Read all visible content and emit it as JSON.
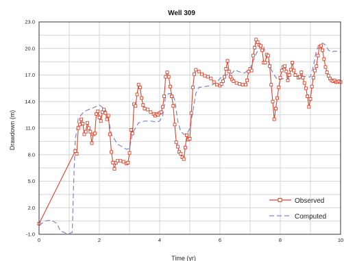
{
  "chart_data": {
    "type": "line",
    "title": "Well 309",
    "xlabel": "Time (yr)",
    "ylabel": "Drawdown (m)",
    "xlim": [
      0,
      10
    ],
    "ylim": [
      -1.0,
      23.0
    ],
    "x_ticks": [
      "0",
      "2",
      "4",
      "6",
      "8",
      "10"
    ],
    "y_ticks": [
      "-1.0",
      "2.0",
      "5.0",
      "8.0",
      "11.0",
      "14.0",
      "17.0",
      "20.0",
      "23.0"
    ],
    "grid": true,
    "legend_position": "bottom-right",
    "series": [
      {
        "name": "Observed",
        "color": "#d9412a",
        "style": "solid-with-square-markers",
        "points": [
          [
            0.0,
            0.2
          ],
          [
            1.2,
            8.4
          ],
          [
            1.25,
            8.1
          ],
          [
            1.3,
            11.0
          ],
          [
            1.35,
            11.4
          ],
          [
            1.4,
            12.0
          ],
          [
            1.45,
            11.5
          ],
          [
            1.5,
            10.3
          ],
          [
            1.55,
            10.6
          ],
          [
            1.6,
            11.6
          ],
          [
            1.65,
            11.0
          ],
          [
            1.7,
            10.6
          ],
          [
            1.75,
            9.3
          ],
          [
            1.8,
            10.3
          ],
          [
            1.85,
            10.4
          ],
          [
            1.9,
            12.6
          ],
          [
            1.95,
            12.9
          ],
          [
            2.0,
            12.2
          ],
          [
            2.05,
            11.8
          ],
          [
            2.1,
            12.8
          ],
          [
            2.15,
            13.1
          ],
          [
            2.2,
            12.7
          ],
          [
            2.25,
            12.0
          ],
          [
            2.3,
            12.4
          ],
          [
            2.35,
            10.3
          ],
          [
            2.4,
            8.3
          ],
          [
            2.45,
            7.1
          ],
          [
            2.5,
            6.4
          ],
          [
            2.55,
            7.1
          ],
          [
            2.6,
            7.3
          ],
          [
            2.7,
            7.3
          ],
          [
            2.8,
            7.2
          ],
          [
            2.9,
            7.0
          ],
          [
            2.95,
            7.1
          ],
          [
            3.0,
            8.2
          ],
          [
            3.05,
            10.8
          ],
          [
            3.1,
            10.4
          ],
          [
            3.15,
            13.7
          ],
          [
            3.2,
            13.5
          ],
          [
            3.25,
            14.8
          ],
          [
            3.3,
            15.9
          ],
          [
            3.35,
            15.6
          ],
          [
            3.4,
            14.4
          ],
          [
            3.45,
            13.6
          ],
          [
            3.5,
            13.2
          ],
          [
            3.6,
            13.1
          ],
          [
            3.7,
            12.8
          ],
          [
            3.8,
            12.6
          ],
          [
            3.85,
            12.4
          ],
          [
            3.9,
            12.6
          ],
          [
            3.95,
            12.5
          ],
          [
            4.0,
            12.7
          ],
          [
            4.05,
            12.8
          ],
          [
            4.1,
            13.4
          ],
          [
            4.15,
            14.6
          ],
          [
            4.2,
            16.8
          ],
          [
            4.25,
            17.3
          ],
          [
            4.3,
            16.8
          ],
          [
            4.35,
            15.7
          ],
          [
            4.4,
            14.6
          ],
          [
            4.45,
            13.5
          ],
          [
            4.5,
            11.4
          ],
          [
            4.55,
            9.4
          ],
          [
            4.6,
            8.9
          ],
          [
            4.65,
            8.3
          ],
          [
            4.7,
            8.1
          ],
          [
            4.75,
            7.7
          ],
          [
            4.8,
            7.5
          ],
          [
            4.85,
            8.8
          ],
          [
            4.9,
            10.2
          ],
          [
            4.95,
            9.7
          ],
          [
            5.0,
            9.8
          ],
          [
            5.05,
            12.7
          ],
          [
            5.1,
            15.6
          ],
          [
            5.15,
            17.1
          ],
          [
            5.2,
            17.6
          ],
          [
            5.3,
            17.4
          ],
          [
            5.4,
            17.1
          ],
          [
            5.5,
            16.9
          ],
          [
            5.6,
            16.8
          ],
          [
            5.7,
            16.6
          ],
          [
            5.8,
            16.2
          ],
          [
            5.9,
            15.9
          ],
          [
            6.0,
            15.8
          ],
          [
            6.05,
            16.0
          ],
          [
            6.1,
            16.3
          ],
          [
            6.15,
            16.8
          ],
          [
            6.2,
            17.7
          ],
          [
            6.25,
            18.6
          ],
          [
            6.3,
            17.4
          ],
          [
            6.35,
            16.8
          ],
          [
            6.4,
            16.5
          ],
          [
            6.45,
            16.3
          ],
          [
            6.55,
            16.1
          ],
          [
            6.65,
            16.0
          ],
          [
            6.75,
            15.9
          ],
          [
            6.85,
            15.9
          ],
          [
            6.9,
            16.4
          ],
          [
            6.95,
            17.4
          ],
          [
            7.0,
            17.7
          ],
          [
            7.05,
            17.5
          ],
          [
            7.1,
            19.2
          ],
          [
            7.15,
            20.1
          ],
          [
            7.2,
            21.0
          ],
          [
            7.25,
            20.7
          ],
          [
            7.3,
            20.4
          ],
          [
            7.35,
            20.3
          ],
          [
            7.4,
            19.8
          ],
          [
            7.45,
            18.4
          ],
          [
            7.5,
            18.4
          ],
          [
            7.55,
            19.3
          ],
          [
            7.6,
            19.2
          ],
          [
            7.65,
            18.0
          ],
          [
            7.7,
            15.9
          ],
          [
            7.75,
            14.0
          ],
          [
            7.8,
            12.0
          ],
          [
            7.85,
            13.2
          ],
          [
            7.9,
            14.4
          ],
          [
            7.95,
            15.6
          ],
          [
            8.0,
            16.7
          ],
          [
            8.05,
            17.5
          ],
          [
            8.1,
            17.9
          ],
          [
            8.15,
            18.0
          ],
          [
            8.2,
            17.4
          ],
          [
            8.25,
            16.4
          ],
          [
            8.3,
            17.0
          ],
          [
            8.35,
            17.6
          ],
          [
            8.4,
            18.4
          ],
          [
            8.45,
            17.5
          ],
          [
            8.5,
            17.0
          ],
          [
            8.6,
            16.7
          ],
          [
            8.65,
            16.8
          ],
          [
            8.7,
            17.3
          ],
          [
            8.75,
            16.7
          ],
          [
            8.8,
            16.1
          ],
          [
            8.85,
            15.5
          ],
          [
            8.9,
            14.6
          ],
          [
            8.95,
            13.4
          ],
          [
            9.0,
            14.3
          ],
          [
            9.05,
            15.7
          ],
          [
            9.1,
            16.7
          ],
          [
            9.15,
            17.5
          ],
          [
            9.2,
            18.0
          ],
          [
            9.25,
            19.2
          ],
          [
            9.3,
            20.2
          ],
          [
            9.35,
            20.3
          ],
          [
            9.4,
            19.8
          ],
          [
            9.45,
            18.8
          ],
          [
            9.5,
            17.9
          ],
          [
            9.55,
            17.3
          ],
          [
            9.6,
            16.9
          ],
          [
            9.65,
            16.6
          ],
          [
            9.7,
            16.4
          ],
          [
            9.75,
            16.3
          ],
          [
            9.8,
            16.4
          ],
          [
            9.85,
            16.2
          ],
          [
            9.9,
            16.2
          ],
          [
            9.95,
            16.3
          ],
          [
            10.0,
            16.2
          ]
        ]
      },
      {
        "name": "Computed",
        "color": "#7f7fd1",
        "style": "dashed",
        "points": [
          [
            0.0,
            0.0
          ],
          [
            0.2,
            0.5
          ],
          [
            0.4,
            0.6
          ],
          [
            0.6,
            0.2
          ],
          [
            0.7,
            -0.6
          ],
          [
            0.8,
            -0.75
          ],
          [
            0.9,
            -0.9
          ],
          [
            1.0,
            -0.9
          ],
          [
            1.1,
            -0.8
          ],
          [
            1.15,
            5.0
          ],
          [
            1.2,
            9.6
          ],
          [
            1.3,
            12.1
          ],
          [
            1.5,
            12.9
          ],
          [
            1.8,
            13.3
          ],
          [
            2.0,
            13.6
          ],
          [
            2.2,
            13.1
          ],
          [
            2.3,
            12.0
          ],
          [
            2.4,
            10.3
          ],
          [
            2.6,
            9.2
          ],
          [
            2.8,
            8.8
          ],
          [
            2.9,
            8.6
          ],
          [
            3.0,
            8.7
          ],
          [
            3.1,
            10.5
          ],
          [
            3.2,
            11.0
          ],
          [
            3.3,
            11.6
          ],
          [
            3.5,
            11.8
          ],
          [
            3.7,
            11.8
          ],
          [
            3.9,
            11.7
          ],
          [
            4.0,
            11.8
          ],
          [
            4.1,
            12.4
          ],
          [
            4.2,
            14.6
          ],
          [
            4.3,
            14.9
          ],
          [
            4.4,
            14.9
          ],
          [
            4.5,
            14.2
          ],
          [
            4.6,
            11.8
          ],
          [
            4.7,
            10.6
          ],
          [
            4.8,
            10.3
          ],
          [
            4.9,
            10.3
          ],
          [
            5.0,
            11.0
          ],
          [
            5.1,
            12.9
          ],
          [
            5.2,
            14.9
          ],
          [
            5.3,
            15.6
          ],
          [
            5.5,
            15.7
          ],
          [
            5.7,
            15.8
          ],
          [
            5.9,
            16.2
          ],
          [
            6.0,
            16.6
          ],
          [
            6.1,
            16.9
          ],
          [
            6.2,
            17.0
          ],
          [
            6.4,
            17.2
          ],
          [
            6.5,
            17.6
          ],
          [
            6.6,
            17.4
          ],
          [
            6.8,
            17.2
          ],
          [
            7.0,
            17.7
          ],
          [
            7.2,
            19.4
          ],
          [
            7.3,
            20.0
          ],
          [
            7.4,
            20.4
          ],
          [
            7.45,
            20.3
          ],
          [
            7.5,
            19.4
          ],
          [
            7.6,
            18.6
          ],
          [
            7.7,
            17.6
          ],
          [
            7.8,
            17.0
          ],
          [
            7.9,
            16.5
          ],
          [
            8.0,
            16.5
          ],
          [
            8.1,
            16.6
          ],
          [
            8.3,
            16.9
          ],
          [
            8.5,
            16.9
          ],
          [
            8.7,
            16.9
          ],
          [
            8.9,
            16.8
          ],
          [
            9.0,
            16.8
          ],
          [
            9.1,
            18.0
          ],
          [
            9.2,
            19.8
          ],
          [
            9.3,
            20.4
          ],
          [
            9.4,
            20.6
          ],
          [
            9.5,
            20.4
          ],
          [
            9.6,
            19.8
          ],
          [
            9.7,
            19.6
          ],
          [
            9.8,
            19.7
          ],
          [
            10.0,
            19.6
          ]
        ]
      }
    ]
  }
}
